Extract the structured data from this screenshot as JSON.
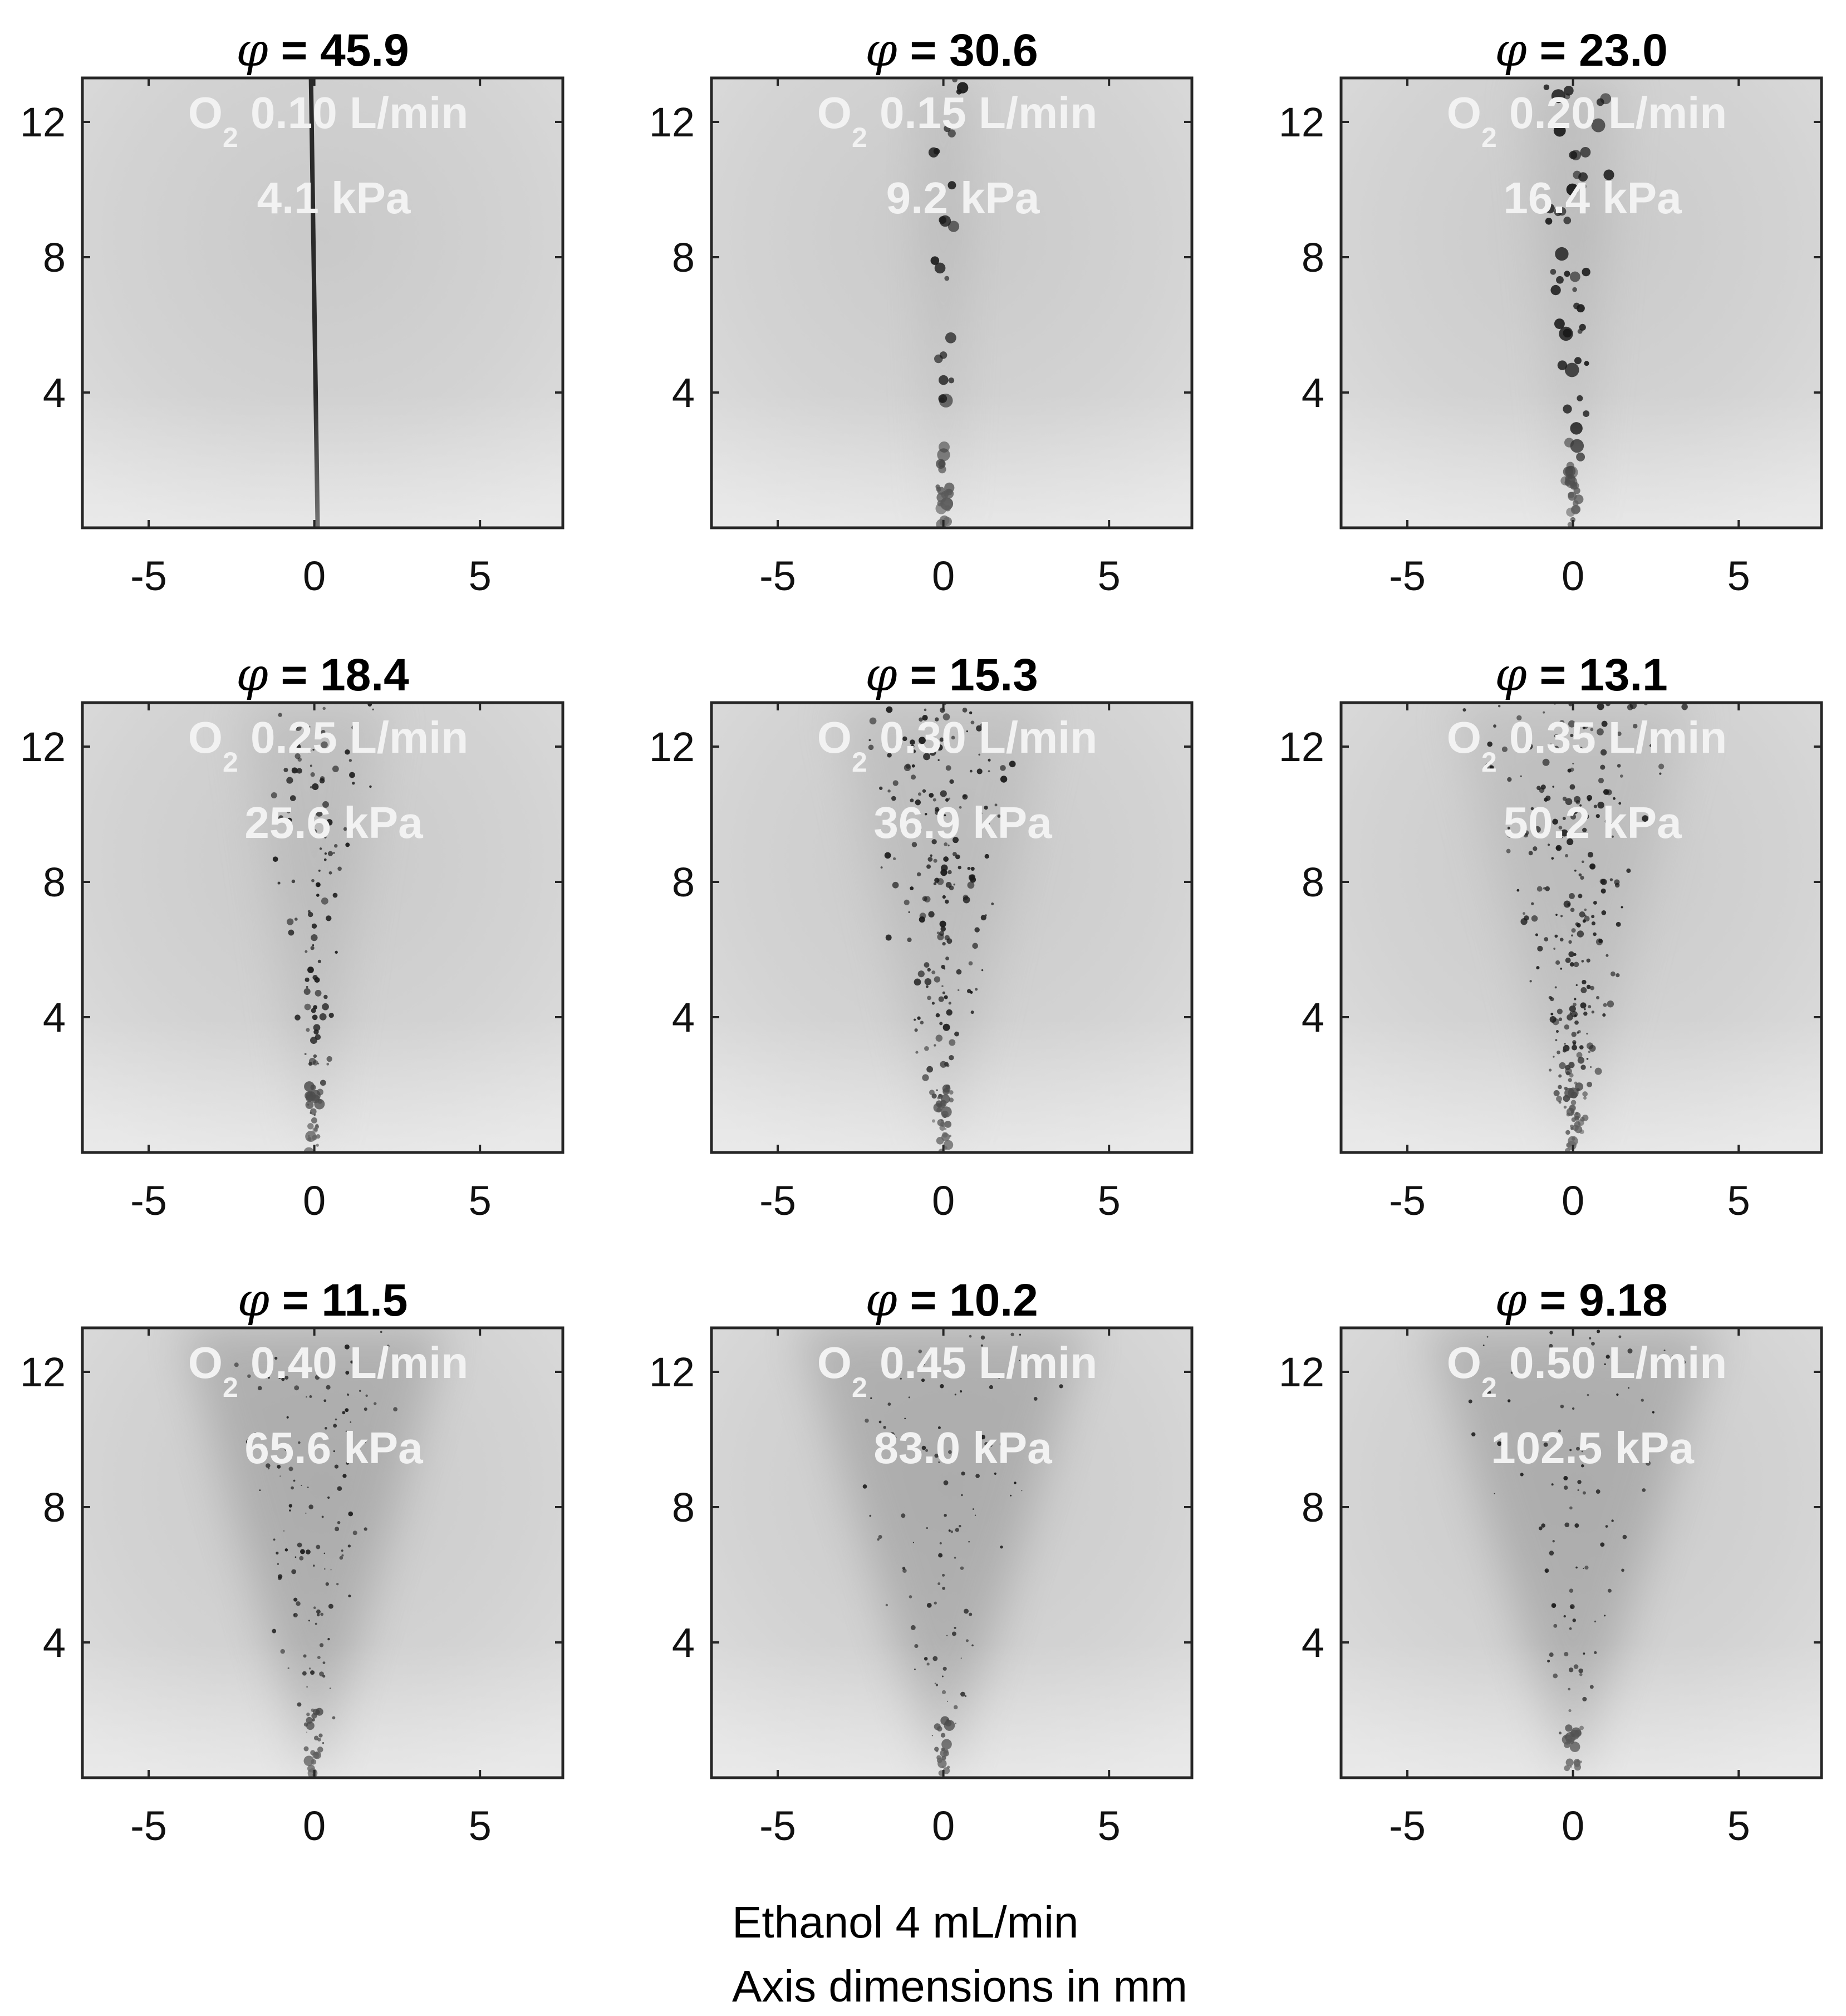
{
  "panels": [
    {
      "phi": "45.9",
      "o2": "0.10 L/min",
      "pressure": "4.1 kPa",
      "spray": "jet",
      "spread": 0.0,
      "density": 0
    },
    {
      "phi": "30.6",
      "o2": "0.15 L/min",
      "pressure": "9.2 kPa",
      "spray": "drops",
      "spread": 0.12,
      "density": 30
    },
    {
      "phi": "23.0",
      "o2": "0.20 L/min",
      "pressure": "16.4 kPa",
      "spray": "drops",
      "spread": 0.2,
      "density": 55
    },
    {
      "phi": "18.4",
      "o2": "0.25 L/min",
      "pressure": "25.6 kPa",
      "spray": "drops",
      "spread": 0.3,
      "density": 120
    },
    {
      "phi": "15.3",
      "o2": "0.30 L/min",
      "pressure": "36.9 kPa",
      "spray": "drops",
      "spread": 0.45,
      "density": 200
    },
    {
      "phi": "13.1",
      "o2": "0.35 L/min",
      "pressure": "50.2 kPa",
      "spray": "drops",
      "spread": 0.5,
      "density": 260
    },
    {
      "phi": "11.5",
      "o2": "0.40 L/min",
      "pressure": "65.6 kPa",
      "spray": "mist",
      "spread": 0.55,
      "density": 140
    },
    {
      "phi": "10.2",
      "o2": "0.45 L/min",
      "pressure": "83.0 kPa",
      "spray": "mist",
      "spread": 0.6,
      "density": 110
    },
    {
      "phi": "9.18",
      "o2": "0.50 L/min",
      "pressure": "102.5 kPa",
      "spray": "mist",
      "spread": 0.6,
      "density": 100
    }
  ],
  "axes": {
    "x_ticks": [
      "-5",
      "0",
      "5"
    ],
    "x_tick_values": [
      -5,
      0,
      5
    ],
    "y_ticks": [
      "4",
      "8",
      "12"
    ],
    "y_tick_values": [
      4,
      8,
      12
    ],
    "xlim": [
      -7,
      7.5
    ],
    "ylim": [
      0,
      13.3
    ]
  },
  "labels": {
    "phi_symbol": "φ",
    "equals": " = ",
    "o2_base": "O",
    "o2_sub": "2"
  },
  "footer": {
    "line1": "Ethanol 4 mL/min",
    "line2": "Axis dimensions in mm"
  },
  "colors": {
    "background": "#ffffff",
    "image_gray": "#d2d2d2",
    "droplet": "#1a1a1a",
    "overlay_text": "#f2f2f2"
  }
}
